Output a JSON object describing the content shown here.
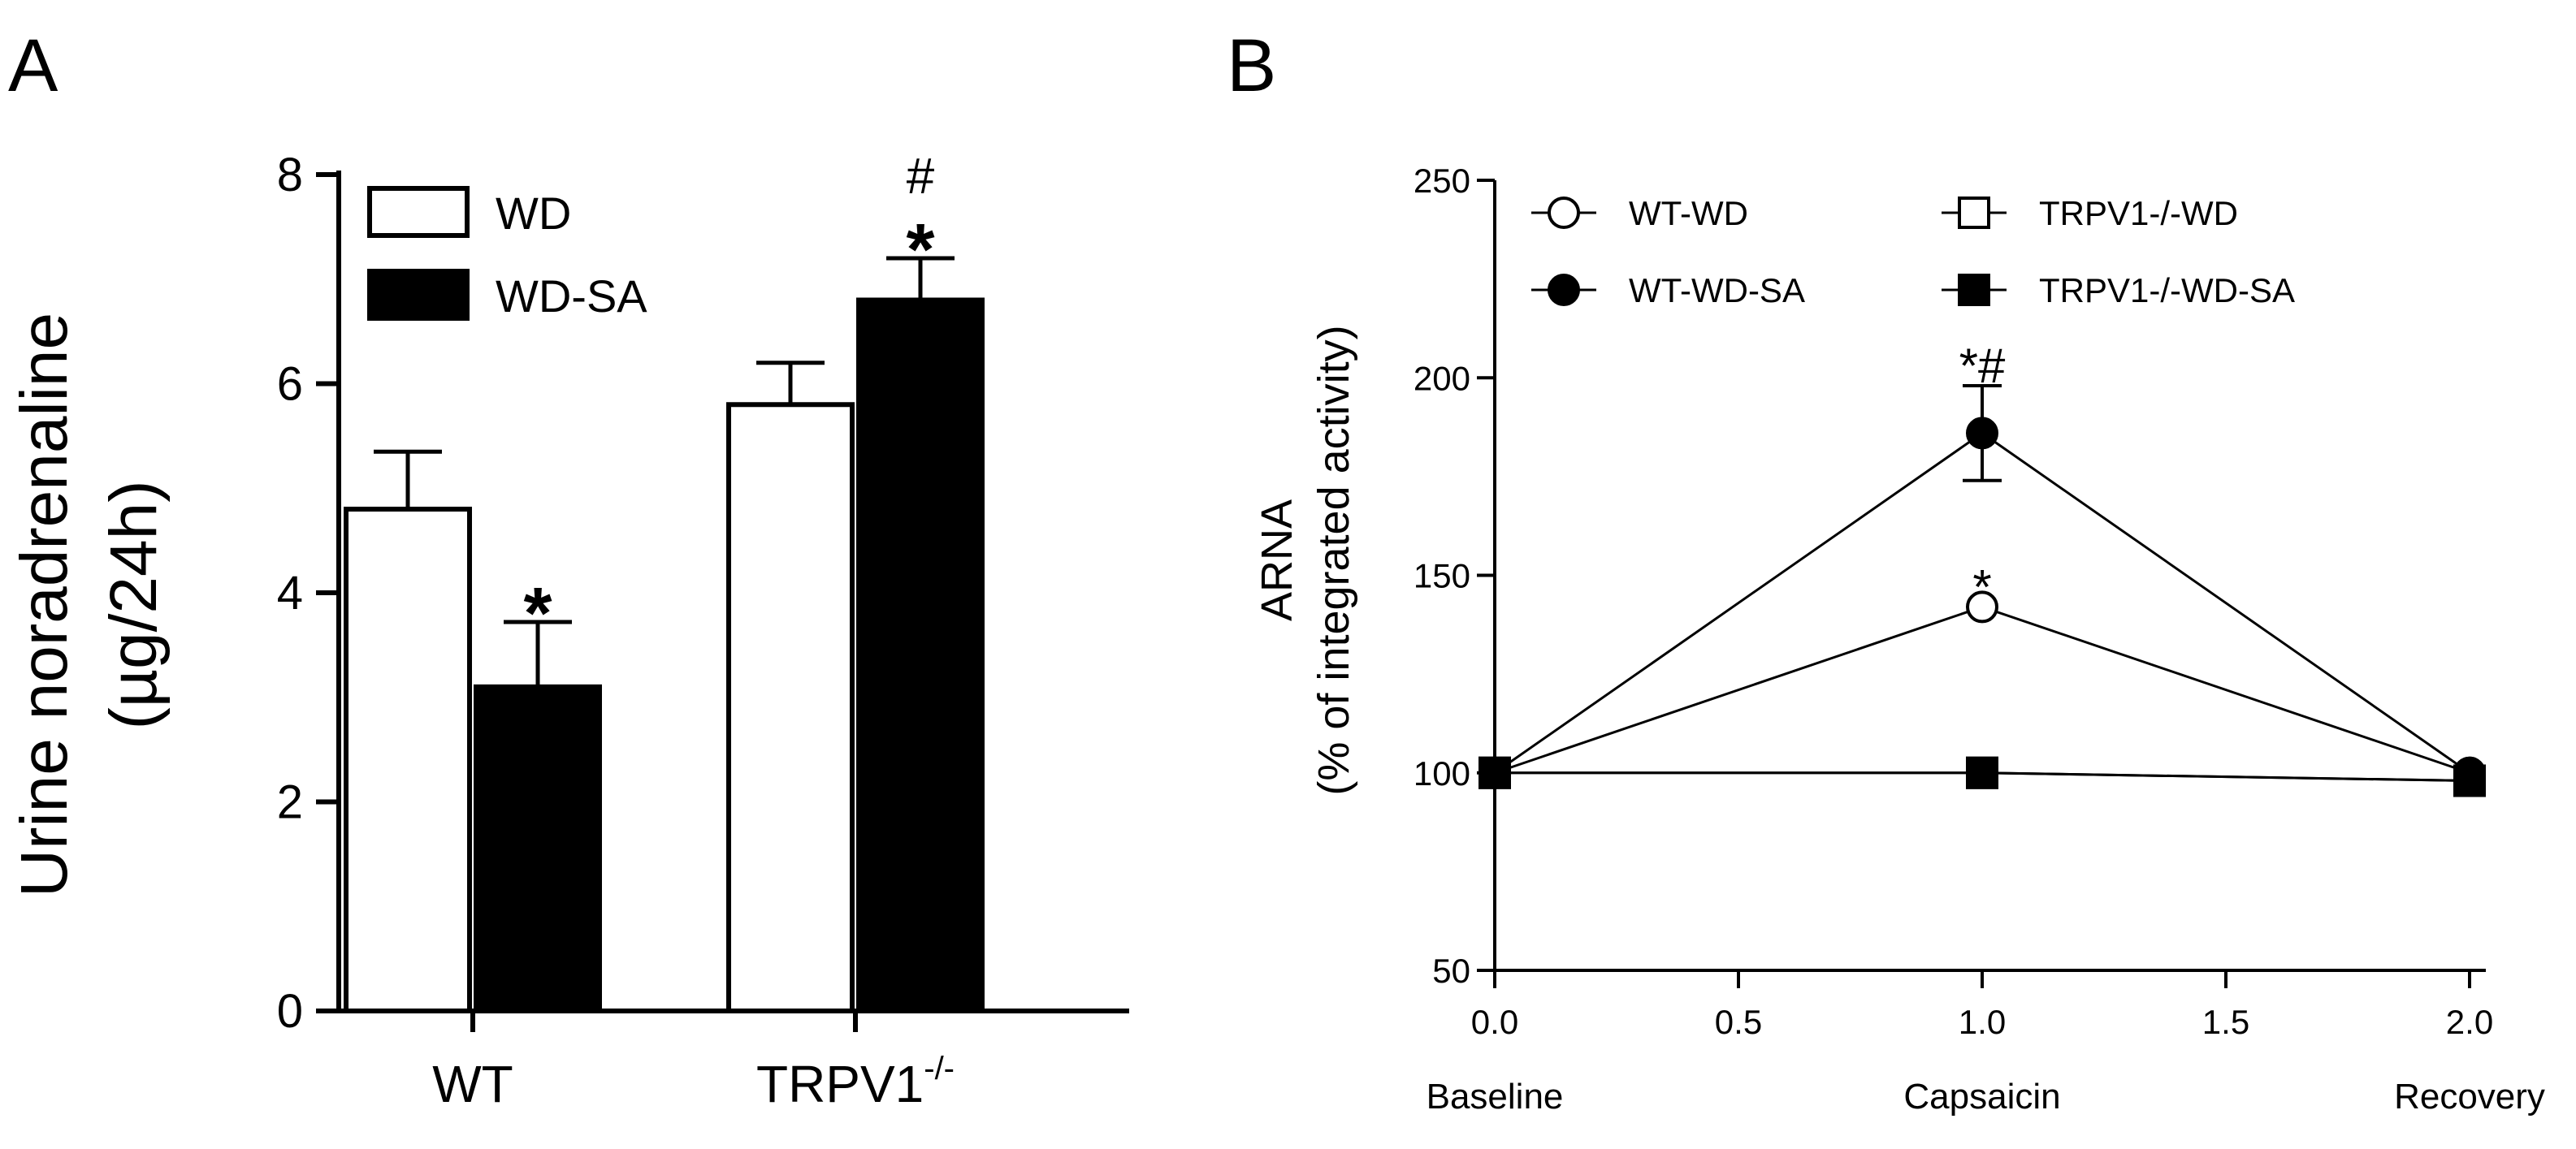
{
  "chart_data": [
    {
      "panel": "A",
      "type": "bar",
      "title": "",
      "ylabel_line1": "Urine noradrenaline",
      "ylabel_line2": "(µg/24h)",
      "xlabel": "",
      "ylim": [
        0,
        8
      ],
      "yticks": [
        0,
        2,
        4,
        6,
        8
      ],
      "categories": [
        {
          "label": "WT",
          "superscript": ""
        },
        {
          "label": "TRPV1",
          "superscript": "-/-"
        }
      ],
      "series": [
        {
          "name": "WD",
          "fill": "#ffffff",
          "values": [
            4.8,
            5.8
          ],
          "errors": [
            0.55,
            0.4
          ]
        },
        {
          "name": "WD-SA",
          "fill": "#000000",
          "values": [
            3.1,
            6.8
          ],
          "errors": [
            0.62,
            0.4
          ]
        }
      ],
      "annotations": [
        {
          "series": 1,
          "category": 0,
          "marks": [
            "*"
          ]
        },
        {
          "series": 1,
          "category": 1,
          "marks": [
            "*",
            "#"
          ]
        }
      ],
      "legend_position": "top-left"
    },
    {
      "panel": "B",
      "type": "line",
      "title": "",
      "ylabel_line1": "ARNA",
      "ylabel_line2": "(% of integrated activity)",
      "xlim": [
        0,
        2
      ],
      "ylim": [
        50,
        250
      ],
      "xticks": [
        "0.0",
        "0.5",
        "1.0",
        "1.5",
        "2.0"
      ],
      "yticks": [
        50,
        100,
        150,
        200,
        250
      ],
      "phase_labels": [
        {
          "x": 0,
          "label": "Baseline"
        },
        {
          "x": 1,
          "label": "Capsaicin"
        },
        {
          "x": 2,
          "label": "Recovery"
        }
      ],
      "series": [
        {
          "name": "WT-WD",
          "marker": "circle",
          "filled": false,
          "x": [
            0,
            1,
            2
          ],
          "y": [
            100,
            142,
            100
          ],
          "errors": [
            0,
            0,
            0
          ]
        },
        {
          "name": "WT-WD-SA",
          "marker": "circle",
          "filled": true,
          "x": [
            0,
            1,
            2
          ],
          "y": [
            100,
            186,
            100
          ],
          "errors": [
            0,
            12,
            0
          ]
        },
        {
          "name": "TRPV1-/-WD",
          "marker": "square",
          "filled": false,
          "x": [
            0,
            1,
            2
          ],
          "y": [
            100,
            100,
            98
          ],
          "errors": [
            0,
            0,
            0
          ]
        },
        {
          "name": "TRPV1-/-WD-SA",
          "marker": "square",
          "filled": true,
          "x": [
            0,
            1,
            2
          ],
          "y": [
            100,
            100,
            98
          ],
          "errors": [
            0,
            0,
            0
          ]
        }
      ],
      "annotations": [
        {
          "x": 1,
          "y": 142,
          "text": "*"
        },
        {
          "x": 1,
          "y": 186,
          "text": "*#"
        }
      ],
      "legend_position": "top"
    }
  ]
}
